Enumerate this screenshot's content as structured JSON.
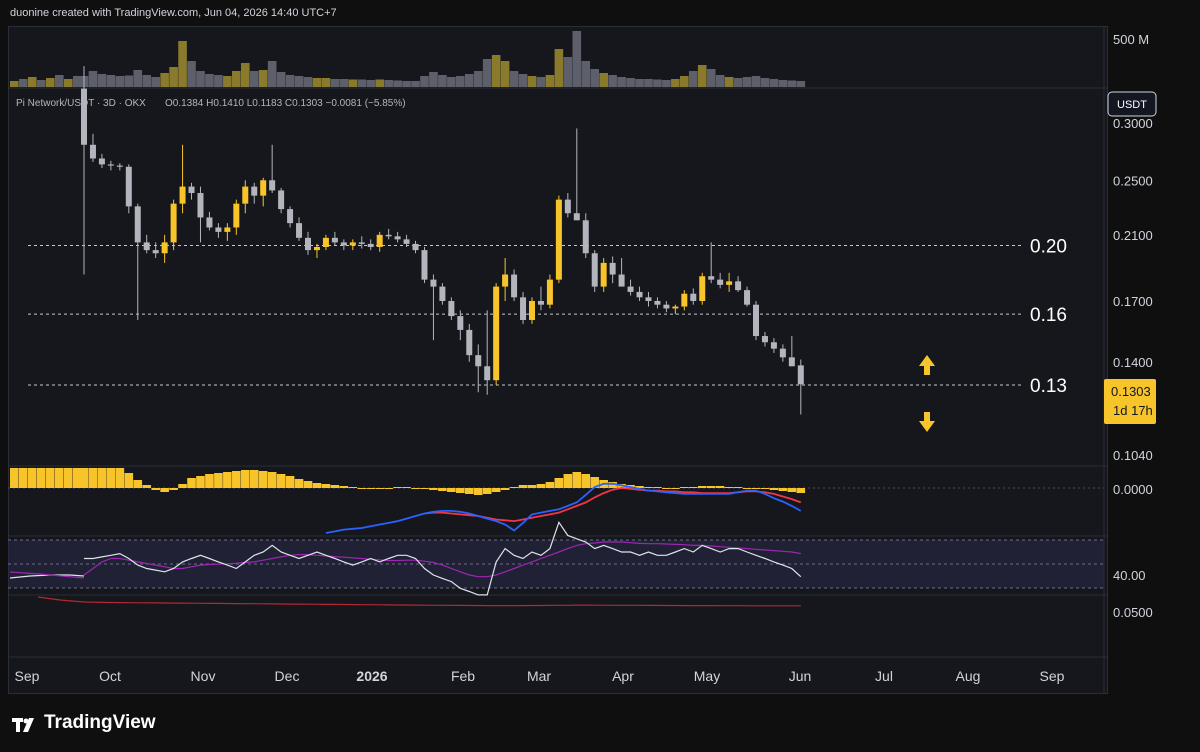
{
  "header": {
    "caption": "duonine created with TradingView.com, Jun 04, 2026 14:40 UTC+7"
  },
  "legend": {
    "symbol": "Pi Network/USDT · 3D · OKX",
    "ohlc": "O0.1384  H0.1410  L0.1183  C0.1303  −0.0081 (−5.85%)"
  },
  "currency_badge": "USDT",
  "volume_scale_label": "500 M",
  "price_badge": {
    "price": "0.1303",
    "countdown": "1d 17h",
    "color": "#f7c42a"
  },
  "levels": [
    {
      "label": "0.20",
      "price": 0.203
    },
    {
      "label": "0.16",
      "price": 0.163
    },
    {
      "label": "0.13",
      "price": 0.13
    }
  ],
  "price_axis_ticks": [
    "0.3000",
    "0.2500",
    "0.2100",
    "0.1700",
    "0.1400",
    "0.1040"
  ],
  "macd_axis_label": "0.0000",
  "rsi_axis_label": "40.00",
  "bottom_axis_label": "0.0500",
  "time_axis_labels": [
    "Sep",
    "Oct",
    "Nov",
    "Dec",
    "2026",
    "Feb",
    "Mar",
    "Apr",
    "May",
    "Jun",
    "Jul",
    "Aug",
    "Sep"
  ],
  "footer": {
    "brand": "TradingView"
  },
  "colors": {
    "up": "#f7c42a",
    "down": "#b2b5be",
    "macd": "#2962ff",
    "signal": "#f23645",
    "rsi": "#e0e3eb",
    "rsi_ma": "#9c27b0",
    "bottom": "#b22833"
  },
  "chart_data": {
    "type": "candlestick",
    "interval": "3D",
    "x_start": "2025-09-21",
    "log_scale": true,
    "ohlc": [
      [
        0.335,
        0.36,
        0.185,
        0.28
      ],
      [
        0.28,
        0.29,
        0.265,
        0.268
      ],
      [
        0.268,
        0.272,
        0.26,
        0.263
      ],
      [
        0.263,
        0.266,
        0.258,
        0.262
      ],
      [
        0.262,
        0.264,
        0.258,
        0.261
      ],
      [
        0.261,
        0.263,
        0.225,
        0.23
      ],
      [
        0.23,
        0.232,
        0.16,
        0.205
      ],
      [
        0.205,
        0.21,
        0.198,
        0.2
      ],
      [
        0.2,
        0.205,
        0.195,
        0.198
      ],
      [
        0.198,
        0.21,
        0.192,
        0.205
      ],
      [
        0.205,
        0.235,
        0.2,
        0.232
      ],
      [
        0.232,
        0.28,
        0.225,
        0.245
      ],
      [
        0.245,
        0.248,
        0.235,
        0.24
      ],
      [
        0.24,
        0.245,
        0.205,
        0.222
      ],
      [
        0.222,
        0.226,
        0.213,
        0.215
      ],
      [
        0.215,
        0.218,
        0.208,
        0.212
      ],
      [
        0.212,
        0.218,
        0.206,
        0.215
      ],
      [
        0.215,
        0.235,
        0.21,
        0.232
      ],
      [
        0.232,
        0.25,
        0.225,
        0.245
      ],
      [
        0.245,
        0.248,
        0.232,
        0.238
      ],
      [
        0.238,
        0.252,
        0.23,
        0.25
      ],
      [
        0.25,
        0.28,
        0.24,
        0.242
      ],
      [
        0.242,
        0.244,
        0.225,
        0.228
      ],
      [
        0.228,
        0.23,
        0.215,
        0.218
      ],
      [
        0.218,
        0.222,
        0.206,
        0.208
      ],
      [
        0.208,
        0.212,
        0.197,
        0.2
      ],
      [
        0.2,
        0.204,
        0.195,
        0.202
      ],
      [
        0.202,
        0.21,
        0.2,
        0.208
      ],
      [
        0.208,
        0.212,
        0.203,
        0.205
      ],
      [
        0.205,
        0.207,
        0.2,
        0.203
      ],
      [
        0.203,
        0.207,
        0.2,
        0.205
      ],
      [
        0.205,
        0.209,
        0.201,
        0.204
      ],
      [
        0.204,
        0.207,
        0.2,
        0.202
      ],
      [
        0.202,
        0.212,
        0.199,
        0.21
      ],
      [
        0.21,
        0.214,
        0.207,
        0.209
      ],
      [
        0.209,
        0.212,
        0.205,
        0.207
      ],
      [
        0.207,
        0.21,
        0.202,
        0.204
      ],
      [
        0.204,
        0.206,
        0.198,
        0.2
      ],
      [
        0.2,
        0.202,
        0.18,
        0.182
      ],
      [
        0.182,
        0.185,
        0.15,
        0.178
      ],
      [
        0.178,
        0.18,
        0.168,
        0.17
      ],
      [
        0.17,
        0.172,
        0.16,
        0.162
      ],
      [
        0.162,
        0.165,
        0.15,
        0.155
      ],
      [
        0.155,
        0.158,
        0.14,
        0.143
      ],
      [
        0.143,
        0.148,
        0.127,
        0.138
      ],
      [
        0.138,
        0.165,
        0.126,
        0.132
      ],
      [
        0.132,
        0.18,
        0.13,
        0.178
      ],
      [
        0.178,
        0.195,
        0.17,
        0.185
      ],
      [
        0.185,
        0.188,
        0.17,
        0.172
      ],
      [
        0.172,
        0.175,
        0.158,
        0.16
      ],
      [
        0.16,
        0.172,
        0.158,
        0.17
      ],
      [
        0.17,
        0.178,
        0.165,
        0.168
      ],
      [
        0.168,
        0.185,
        0.166,
        0.182
      ],
      [
        0.182,
        0.238,
        0.18,
        0.235
      ],
      [
        0.235,
        0.24,
        0.222,
        0.225
      ],
      [
        0.225,
        0.295,
        0.22,
        0.22
      ],
      [
        0.22,
        0.225,
        0.195,
        0.198
      ],
      [
        0.198,
        0.2,
        0.175,
        0.178
      ],
      [
        0.178,
        0.195,
        0.175,
        0.192
      ],
      [
        0.192,
        0.196,
        0.18,
        0.185
      ],
      [
        0.185,
        0.195,
        0.18,
        0.178
      ],
      [
        0.178,
        0.182,
        0.173,
        0.175
      ],
      [
        0.175,
        0.178,
        0.17,
        0.172
      ],
      [
        0.172,
        0.175,
        0.167,
        0.17
      ],
      [
        0.17,
        0.172,
        0.166,
        0.168
      ],
      [
        0.168,
        0.17,
        0.164,
        0.166
      ],
      [
        0.166,
        0.168,
        0.163,
        0.167
      ],
      [
        0.167,
        0.176,
        0.165,
        0.174
      ],
      [
        0.174,
        0.177,
        0.168,
        0.17
      ],
      [
        0.17,
        0.186,
        0.168,
        0.184
      ],
      [
        0.184,
        0.205,
        0.18,
        0.182
      ],
      [
        0.182,
        0.186,
        0.177,
        0.179
      ],
      [
        0.179,
        0.186,
        0.175,
        0.181
      ],
      [
        0.181,
        0.184,
        0.175,
        0.176
      ],
      [
        0.176,
        0.178,
        0.167,
        0.168
      ],
      [
        0.168,
        0.17,
        0.15,
        0.152
      ],
      [
        0.152,
        0.154,
        0.147,
        0.149
      ],
      [
        0.149,
        0.151,
        0.144,
        0.146
      ],
      [
        0.146,
        0.148,
        0.14,
        0.142
      ],
      [
        0.142,
        0.152,
        0.138,
        0.138
      ],
      [
        0.1384,
        0.141,
        0.1183,
        0.1303
      ]
    ],
    "volume": [
      110,
      160,
      130,
      120,
      110,
      115,
      170,
      120,
      100,
      140,
      200,
      460,
      260,
      160,
      130,
      120,
      110,
      160,
      240,
      160,
      170,
      260,
      150,
      120,
      110,
      100,
      90,
      90,
      80,
      80,
      75,
      75,
      70,
      75,
      70,
      65,
      60,
      60,
      110,
      150,
      120,
      100,
      110,
      130,
      160,
      280,
      320,
      260,
      160,
      130,
      110,
      100,
      120,
      380,
      300,
      560,
      260,
      180,
      140,
      120,
      100,
      90,
      80,
      80,
      75,
      70,
      80,
      110,
      160,
      220,
      180,
      120,
      100,
      90,
      100,
      110,
      90,
      80,
      70,
      65,
      60
    ],
    "macd_hist": [
      20,
      20,
      20,
      20,
      20,
      15,
      8,
      3,
      -2,
      -4,
      -2,
      4,
      10,
      12,
      14,
      15,
      16,
      17,
      18,
      18,
      17,
      16,
      14,
      12,
      9,
      7,
      5,
      4,
      3,
      2,
      1,
      0,
      -1,
      -1,
      0,
      1,
      1,
      0,
      -1,
      -2,
      -3,
      -4,
      -5,
      -6,
      -7,
      -6,
      -4,
      -2,
      1,
      3,
      3,
      4,
      6,
      10,
      14,
      16,
      14,
      11,
      8,
      6,
      4,
      3,
      2,
      1,
      1,
      0,
      0,
      1,
      1,
      2,
      2,
      2,
      1,
      1,
      0,
      0,
      -1,
      -2,
      -3,
      -4,
      -5
    ],
    "macd_line": [
      null,
      null,
      null,
      null,
      null,
      null,
      null,
      null,
      null,
      null,
      null,
      null,
      null,
      null,
      null,
      null,
      null,
      null,
      null,
      null,
      null,
      null,
      null,
      null,
      null,
      null,
      null,
      -0.0265,
      -0.0255,
      -0.0245,
      -0.024,
      -0.0235,
      -0.0225,
      -0.0215,
      -0.0205,
      -0.0195,
      -0.018,
      -0.0165,
      -0.015,
      -0.014,
      -0.0135,
      -0.0135,
      -0.014,
      -0.015,
      -0.0165,
      -0.018,
      -0.0195,
      -0.0215,
      -0.025,
      -0.0205,
      -0.0155,
      -0.0145,
      -0.0135,
      -0.0125,
      -0.0105,
      -0.0085,
      -0.004,
      0.0005,
      0.0025,
      0.0025,
      0.0015,
      0.0005,
      -0.0005,
      -0.0015,
      -0.002,
      -0.0025,
      -0.003,
      -0.0035,
      -0.0035,
      -0.0035,
      -0.0035,
      -0.0035,
      -0.0035,
      -0.0025,
      -0.0015,
      -0.0015,
      -0.0035,
      -0.006,
      -0.008,
      -0.0105,
      -0.0135
    ],
    "macd_signal": [
      null,
      null,
      null,
      null,
      null,
      null,
      null,
      null,
      null,
      null,
      null,
      null,
      null,
      null,
      null,
      null,
      null,
      null,
      null,
      null,
      null,
      null,
      null,
      null,
      null,
      null,
      null,
      null,
      null,
      null,
      null,
      null,
      null,
      null,
      null,
      null,
      null,
      null,
      -0.015,
      -0.0145,
      -0.0145,
      -0.015,
      -0.0155,
      -0.016,
      -0.0165,
      -0.0175,
      -0.0185,
      -0.019,
      -0.0195,
      -0.0185,
      -0.0175,
      -0.0165,
      -0.0155,
      -0.0145,
      -0.0125,
      -0.0105,
      -0.0085,
      -0.0055,
      -0.003,
      -0.001,
      0,
      -0.0005,
      -0.001,
      -0.0015,
      -0.0015,
      -0.002,
      -0.002,
      -0.0025,
      -0.0025,
      -0.003,
      -0.003,
      -0.003,
      -0.003,
      -0.0025,
      -0.002,
      -0.002,
      -0.0025,
      -0.0035,
      -0.005,
      -0.0065,
      -0.0085
    ],
    "rsi": [
      43,
      43,
      43.5,
      44,
      44.5,
      43,
      41,
      40,
      39.5,
      39,
      40,
      42,
      43,
      44,
      43,
      42,
      41,
      40,
      42,
      44,
      45,
      47,
      45,
      44,
      43,
      44,
      45,
      44,
      43,
      42,
      41,
      42,
      43,
      42,
      43,
      44,
      44,
      43,
      40,
      38,
      37,
      36,
      34,
      33,
      32,
      32,
      42,
      46,
      44,
      43,
      45,
      44,
      46,
      54,
      50,
      49,
      48,
      46,
      47,
      46,
      45,
      45,
      44,
      45,
      44,
      44,
      45,
      46,
      45,
      47,
      46,
      45,
      46,
      46,
      45,
      44,
      43,
      42,
      41,
      40,
      37.5
    ],
    "rsi_ma": [
      38,
      40,
      42,
      43,
      43,
      42.5,
      42,
      41.5,
      41,
      40.5,
      40,
      40,
      40.5,
      41,
      41.2,
      41.3,
      41.4,
      41.6,
      41.8,
      42,
      42.5,
      43,
      43.5,
      44,
      44.2,
      44.2,
      44,
      43.8,
      43.6,
      43.4,
      43.2,
      43,
      42.8,
      42.6,
      42.4,
      42.4,
      42.5,
      42.5,
      42.2,
      41.8,
      41,
      40,
      39,
      38,
      37.5,
      37.5,
      38,
      39,
      40,
      41,
      42,
      43,
      44,
      45,
      46,
      47,
      47.5,
      47.7,
      48,
      48,
      48,
      47.8,
      47.6,
      47.5,
      47.5,
      47.4,
      47.3,
      47.2,
      47,
      47,
      46.8,
      46.6,
      46.4,
      46.2,
      46,
      45.8,
      45.6,
      45.4,
      45.2,
      45,
      44.5
    ],
    "bottom_line": [
      0.0505,
      0.0503,
      0.05,
      0.0498,
      0.0497,
      0.0496,
      0.0495,
      0.0494,
      0.0493,
      0.0492,
      0.0491,
      0.049,
      0.0489,
      0.0488,
      0.0487,
      0.0486,
      0.0485,
      0.0484,
      0.0483,
      0.0482,
      0.0481,
      0.048,
      0.0479,
      0.0478,
      0.0477,
      0.0476,
      0.0475,
      0.0474,
      0.0473,
      0.0472,
      0.0471,
      0.047,
      0.0469,
      0.0468,
      0.0467,
      0.0466,
      0.0465,
      0.0464,
      0.0463,
      0.0462,
      0.0461,
      0.046,
      0.046,
      0.0459,
      0.0459,
      0.0458,
      0.0458,
      0.0458,
      0.0458,
      0.0458,
      0.0459,
      0.0459,
      0.046,
      0.0461,
      0.0462,
      0.0464,
      0.0464,
      0.0463,
      0.0463,
      0.0462,
      0.0462,
      0.0461,
      0.0461,
      0.046,
      0.046,
      0.0459,
      0.0459,
      0.0458,
      0.0458,
      0.0457,
      0.0457,
      0.0456,
      0.0456,
      0.0456,
      0.0455,
      0.0455,
      0.0455,
      0.0455,
      0.0455,
      0.0455,
      0.0455
    ]
  }
}
